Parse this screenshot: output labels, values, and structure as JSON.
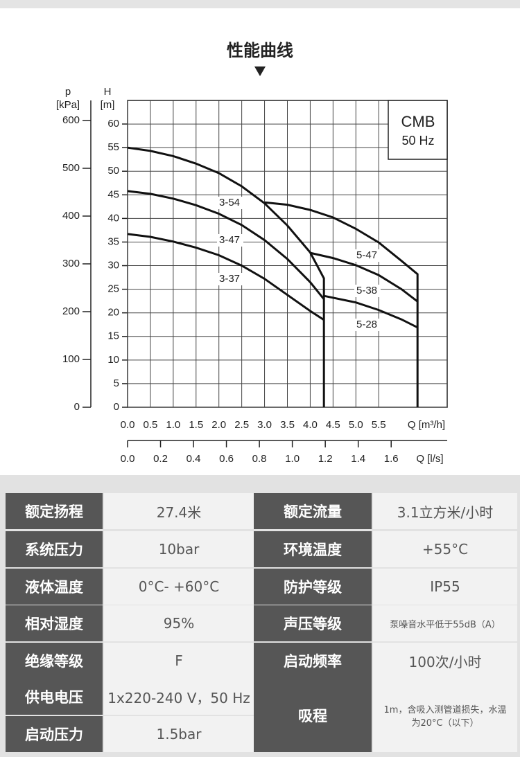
{
  "chart_data": {
    "type": "line",
    "title": "性能曲线",
    "ylabel": "H",
    "yunit": "[m]",
    "y2label": "p",
    "y2unit": "[kPa]",
    "xlabel": "Q [m³/h]",
    "x2label": "Q [l/s]",
    "xlim": [
      0,
      7
    ],
    "xticks": [
      {
        "value": 0,
        "label": "0.0"
      },
      0.5,
      {
        "value": 1,
        "label": "1.0"
      },
      1.5,
      {
        "value": 2,
        "label": "2.0"
      },
      2.5,
      {
        "value": 3,
        "label": "3.0"
      },
      3.5,
      {
        "value": 4,
        "label": "4.0"
      },
      4.5,
      {
        "value": 5,
        "label": "5.0"
      },
      5.5
    ],
    "x2lim": [
      0,
      1.94
    ],
    "x2ticks": [
      {
        "value": 0,
        "label": "0.0"
      },
      0.2,
      0.4,
      0.6,
      0.8,
      {
        "value": 1,
        "label": "1.0"
      },
      1.2,
      1.4,
      1.6
    ],
    "ylim": [
      0,
      65
    ],
    "yticks": [
      0,
      5,
      10,
      15,
      20,
      25,
      30,
      35,
      40,
      45,
      50,
      55,
      60
    ],
    "y2lim": [
      0,
      642
    ],
    "y2ticks": [
      0,
      100,
      200,
      300,
      400,
      500,
      600
    ],
    "grid": true,
    "annotation": [
      "CMB",
      "50 Hz"
    ],
    "series": [
      {
        "name": "3-54",
        "color": "#111111",
        "x": [
          0,
          0.5,
          1,
          1.5,
          2,
          2.5,
          3,
          3.5,
          4,
          4.3,
          4.3
        ],
        "values": [
          55,
          54.3,
          53.2,
          51.6,
          49.6,
          46.8,
          43.2,
          38.5,
          32.8,
          27.3,
          0
        ]
      },
      {
        "name": "3-47",
        "color": "#111111",
        "x": [
          0,
          0.5,
          1,
          1.5,
          2,
          2.5,
          3,
          3.5,
          4,
          4.3
        ],
        "values": [
          45.8,
          45.2,
          44.2,
          42.8,
          41,
          38.6,
          35.4,
          31.4,
          26.5,
          22.9
        ]
      },
      {
        "name": "3-37",
        "color": "#111111",
        "x": [
          0,
          0.5,
          1,
          1.5,
          2,
          2.5,
          3,
          3.5,
          4,
          4.3
        ],
        "values": [
          36.7,
          36.1,
          35.1,
          33.8,
          32.2,
          30,
          27.2,
          23.8,
          20.4,
          18.5
        ]
      },
      {
        "name": "5-47",
        "color": "#111111",
        "x": [
          3,
          3.5,
          4,
          4.5,
          5,
          5.5,
          6,
          6.35,
          6.35
        ],
        "values": [
          43.4,
          42.9,
          41.8,
          40.2,
          37.8,
          34.9,
          31,
          28.2,
          0
        ]
      },
      {
        "name": "5-38",
        "color": "#111111",
        "x": [
          4,
          4.5,
          5,
          5.5,
          6,
          6.35
        ],
        "values": [
          32.7,
          31.6,
          30.1,
          28,
          25,
          22.4
        ]
      },
      {
        "name": "5-28",
        "color": "#111111",
        "x": [
          4.3,
          5,
          5.5,
          6,
          6.35
        ],
        "values": [
          23.6,
          22.2,
          20.6,
          18.6,
          16.9
        ]
      }
    ]
  },
  "table": {
    "rows": [
      [
        "额定扬程",
        "27.4米",
        "额定流量",
        "3.1立方米/小时"
      ],
      [
        "系统压力",
        "10bar",
        "环境温度",
        "+55°C"
      ],
      [
        "液体温度",
        "0°C- +60°C",
        "防护等级",
        "IP55"
      ],
      [
        "相对湿度",
        "95%",
        "声压等级",
        "泵噪音水平低于55dB（A）"
      ],
      [
        "绝缘等级",
        "F",
        "启动频率",
        "100次/小时"
      ],
      [
        "供电电压",
        "1x220-240 V，50 Hz"
      ],
      [
        "启动压力",
        "1.5bar"
      ]
    ],
    "merged": [
      "吸程",
      "1m，含吸入测管道损失，水温为20°C（以下）"
    ]
  }
}
